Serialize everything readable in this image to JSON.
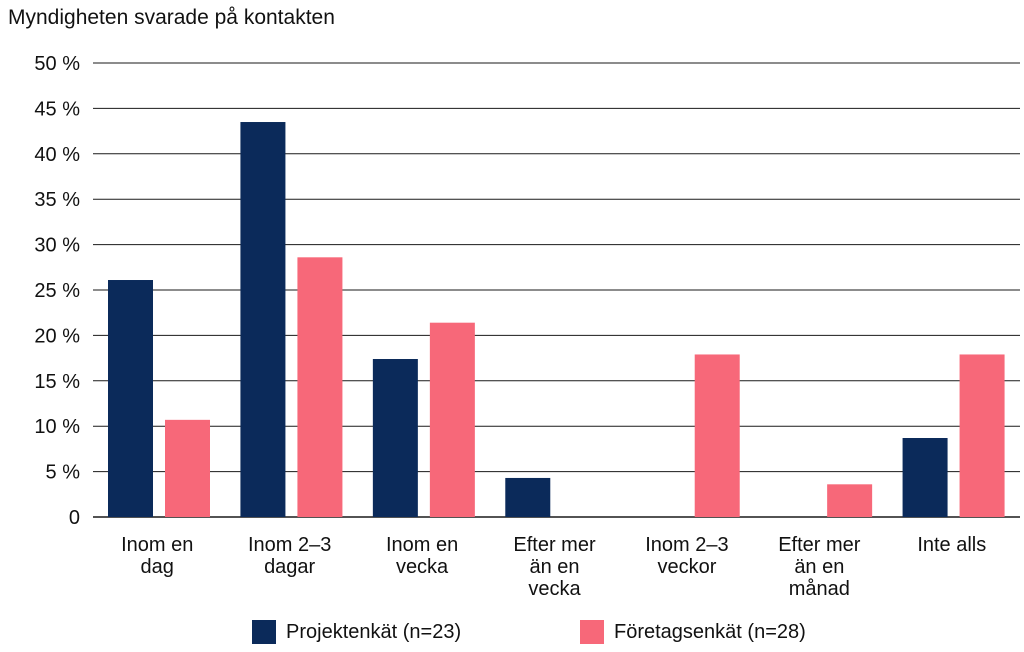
{
  "chart_data": {
    "type": "bar",
    "title": "Myndigheten svarade på kontakten",
    "xlabel": "",
    "ylabel": "",
    "ylim": [
      0,
      50
    ],
    "yticks": [
      0,
      5,
      10,
      15,
      20,
      25,
      30,
      35,
      40,
      45,
      50
    ],
    "ytick_labels": [
      "0",
      "5 %",
      "10 %",
      "15 %",
      "20 %",
      "25 %",
      "30 %",
      "35 %",
      "40 %",
      "45 %",
      "50 %"
    ],
    "grid": true,
    "legend_position": "bottom",
    "categories": [
      [
        "Inom en",
        "dag"
      ],
      [
        "Inom 2–3",
        "dagar"
      ],
      [
        "Inom en",
        "vecka"
      ],
      [
        "Efter mer",
        "än en",
        "vecka"
      ],
      [
        "Inom 2–3",
        "veckor"
      ],
      [
        "Efter mer",
        "än en",
        "månad"
      ],
      [
        "Inte alls"
      ]
    ],
    "series": [
      {
        "name": "Projektenkät (n=23)",
        "color": "#0b2a5a",
        "values": [
          26.1,
          43.5,
          17.4,
          4.3,
          0,
          0,
          8.7
        ]
      },
      {
        "name": "Företagsenkät (n=28)",
        "color": "#f76879",
        "values": [
          10.7,
          28.6,
          21.4,
          0,
          17.9,
          3.6,
          17.9
        ]
      }
    ]
  }
}
